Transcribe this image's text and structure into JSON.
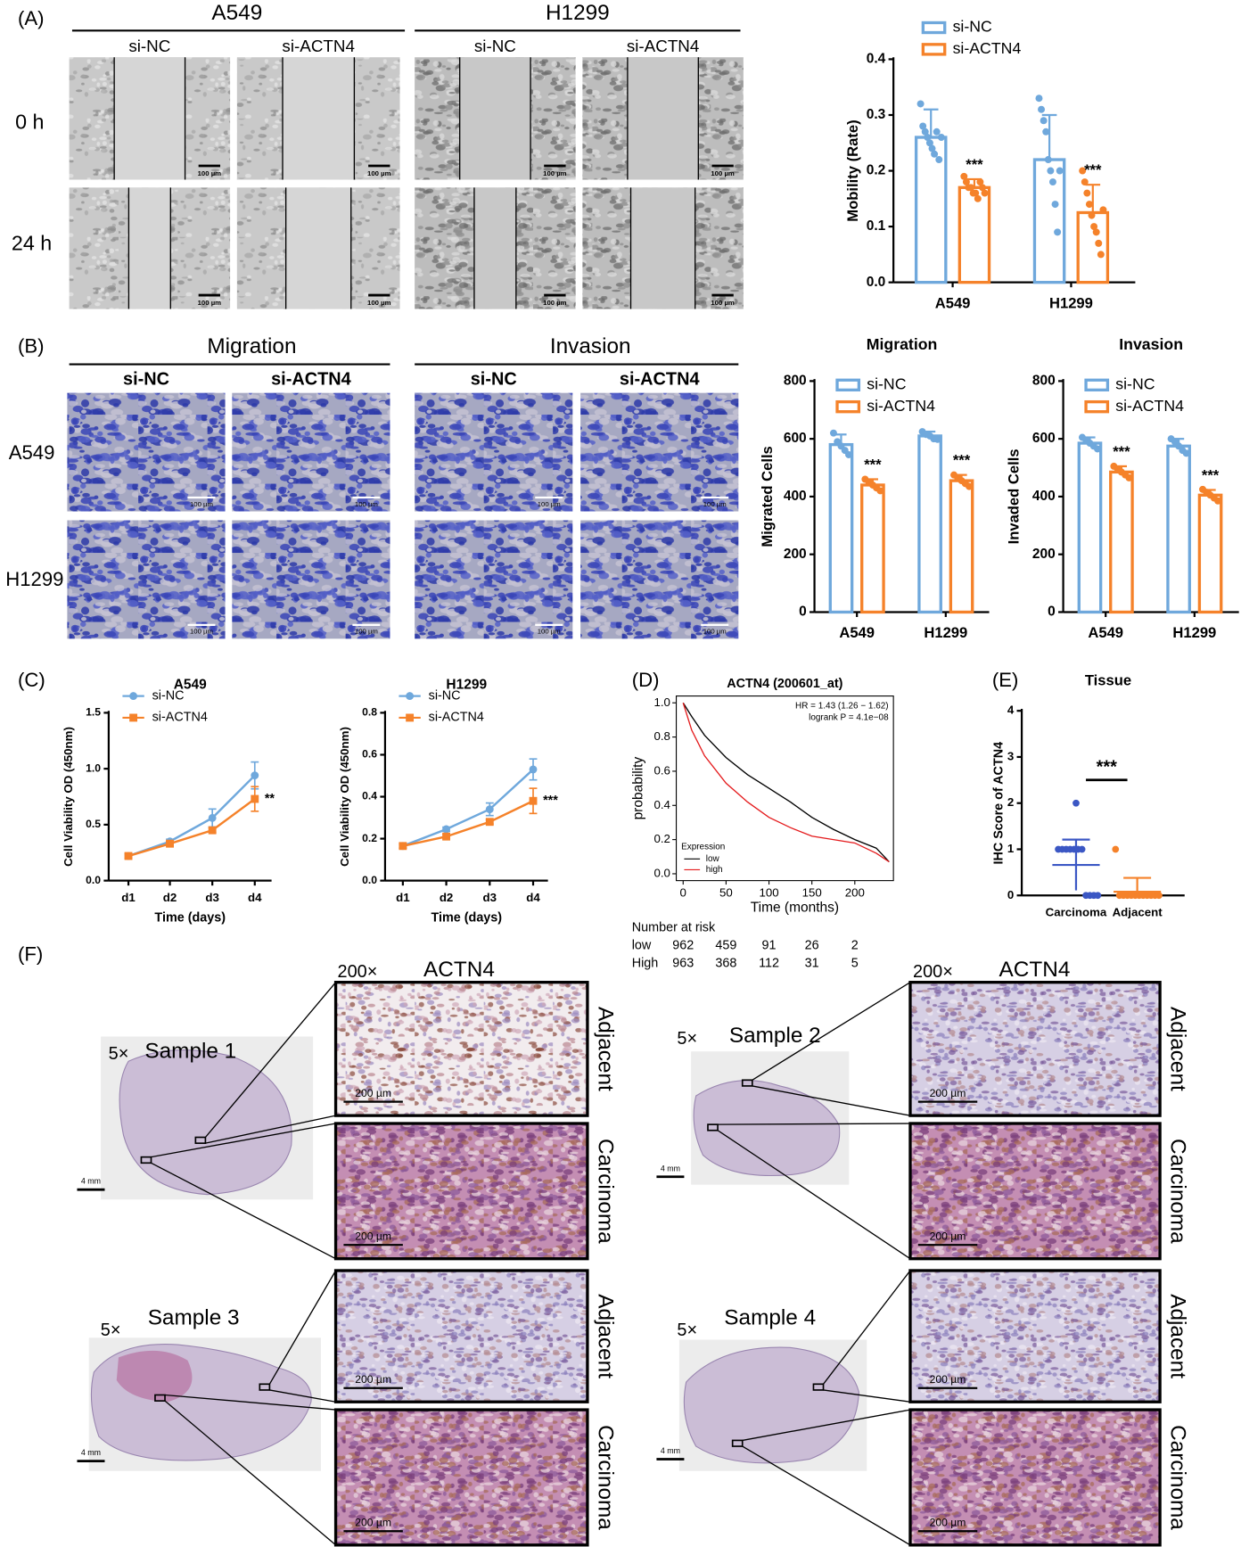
{
  "panel_labels": [
    "(A)",
    "(B)",
    "(C)",
    "(D)",
    "(E)",
    "(F)"
  ],
  "a_images": {
    "cell_lines": [
      "A549",
      "H1299"
    ],
    "groups": [
      "si-NC",
      "si-ACTN4"
    ],
    "times": [
      "0 h",
      "24 h"
    ],
    "scale": "100 µm"
  },
  "b_images": {
    "assays": [
      "Migration",
      "Invasion"
    ],
    "groups": [
      "si-NC",
      "si-ACTN4"
    ],
    "cell_lines": [
      "A549",
      "H1299"
    ],
    "scale": "100 µm"
  },
  "f_images": {
    "low_mag": "5×",
    "high_mag": "200×",
    "stain": "ACTN4",
    "samples": [
      "Sample 1",
      "Sample 2",
      "Sample 3",
      "Sample 4"
    ],
    "tissues": [
      "Adjacent",
      "Carcinoma"
    ],
    "scale_low": "4 mm",
    "scale_high": "200 µm"
  },
  "chart_data": [
    {
      "type": "bar",
      "ylabel": "Mobility (Rate)",
      "categories": [
        "A549",
        "H1299"
      ],
      "ylim": [
        0,
        0.4
      ],
      "yticks": [
        {
          "value": 0,
          "label": "0.0"
        },
        0.1,
        0.2,
        0.3,
        0.4
      ],
      "legend": true,
      "annotations": [
        "***",
        "***"
      ],
      "series": [
        {
          "name": "si-NC",
          "color": "#6fa8dc",
          "values": [
            0.26,
            0.22
          ],
          "errors": [
            0.05,
            0.08
          ],
          "points": [
            [
              0.32,
              0.28,
              0.27,
              0.26,
              0.25,
              0.24,
              0.23,
              0.27,
              0.22,
              0.26
            ],
            [
              0.33,
              0.31,
              0.29,
              0.27,
              0.22,
              0.2,
              0.18,
              0.14,
              0.09,
              0.2
            ]
          ]
        },
        {
          "name": "si-ACTN4",
          "color": "#f5822a",
          "values": [
            0.17,
            0.125
          ],
          "errors": [
            0.015,
            0.05
          ],
          "points": [
            [
              0.19,
              0.18,
              0.17,
              0.17,
              0.16,
              0.16,
              0.15,
              0.18,
              0.17,
              0.16
            ],
            [
              0.2,
              0.18,
              0.16,
              0.14,
              0.12,
              0.1,
              0.09,
              0.07,
              0.05,
              0.13
            ]
          ]
        }
      ]
    },
    {
      "type": "bar",
      "title": "Migration",
      "ylabel": "Migrated Cells",
      "categories": [
        "A549",
        "H1299"
      ],
      "ylim": [
        0,
        800
      ],
      "yticks": [
        0,
        200,
        400,
        600,
        800
      ],
      "legend": true,
      "annotations": [
        "***",
        "***"
      ],
      "series": [
        {
          "name": "si-NC",
          "color": "#6fa8dc",
          "values": [
            580,
            610
          ],
          "errors": [
            35,
            15
          ],
          "points": [
            [
              620,
              590,
              575,
              560,
              545
            ],
            [
              625,
              615,
              610,
              600,
              598
            ]
          ]
        },
        {
          "name": "si-ACTN4",
          "color": "#f5822a",
          "values": [
            440,
            455
          ],
          "errors": [
            20,
            20
          ],
          "points": [
            [
              460,
              450,
              440,
              430,
              420
            ],
            [
              475,
              465,
              455,
              445,
              435
            ]
          ]
        }
      ]
    },
    {
      "type": "bar",
      "title": "Invasion",
      "ylabel": "Invaded Cells",
      "categories": [
        "A549",
        "H1299"
      ],
      "ylim": [
        0,
        800
      ],
      "yticks": [
        0,
        200,
        400,
        600,
        800
      ],
      "legend": true,
      "annotations": [
        "***",
        "***"
      ],
      "series": [
        {
          "name": "si-NC",
          "color": "#6fa8dc",
          "values": [
            585,
            575
          ],
          "errors": [
            20,
            25
          ],
          "points": [
            [
              605,
              595,
              585,
              575,
              565
            ],
            [
              600,
              590,
              575,
              560,
              550
            ]
          ]
        },
        {
          "name": "si-ACTN4",
          "color": "#f5822a",
          "values": [
            485,
            405
          ],
          "errors": [
            20,
            18
          ],
          "points": [
            [
              505,
              495,
              485,
              475,
              465
            ],
            [
              425,
              415,
              405,
              395,
              385
            ]
          ]
        }
      ]
    },
    {
      "type": "line",
      "title": "A549",
      "xlabel": "Time (days)",
      "ylabel": "Cell Viability OD (450nm)",
      "categories": [
        "d1",
        "d2",
        "d3",
        "d4"
      ],
      "ylim": [
        0,
        1.5
      ],
      "yticks": [
        {
          "value": 0,
          "label": "0.0"
        },
        0.5,
        {
          "value": 1,
          "label": "1.0"
        },
        1.5
      ],
      "legend": true,
      "annotation": "**",
      "series": [
        {
          "name": "si-NC",
          "color": "#6fa8dc",
          "marker": "circle",
          "values": [
            0.22,
            0.35,
            0.56,
            0.94
          ],
          "errors": [
            0.02,
            0.02,
            0.08,
            0.12
          ]
        },
        {
          "name": "si-ACTN4",
          "color": "#f5822a",
          "marker": "square",
          "values": [
            0.22,
            0.33,
            0.45,
            0.73
          ],
          "errors": [
            0.02,
            0.02,
            0.02,
            0.11
          ]
        }
      ]
    },
    {
      "type": "line",
      "title": "H1299",
      "xlabel": "Time (days)",
      "ylabel": "Cell Viability OD (450nm)",
      "categories": [
        "d1",
        "d2",
        "d3",
        "d4"
      ],
      "ylim": [
        0,
        0.8
      ],
      "yticks": [
        {
          "value": 0,
          "label": "0.0"
        },
        0.2,
        0.4,
        0.6,
        0.8
      ],
      "legend": true,
      "annotation": "***",
      "series": [
        {
          "name": "si-NC",
          "color": "#6fa8dc",
          "marker": "circle",
          "values": [
            0.165,
            0.245,
            0.34,
            0.53
          ],
          "errors": [
            0.01,
            0.01,
            0.03,
            0.05
          ]
        },
        {
          "name": "si-ACTN4",
          "color": "#f5822a",
          "marker": "square",
          "values": [
            0.165,
            0.21,
            0.28,
            0.38
          ],
          "errors": [
            0.01,
            0.01,
            0.01,
            0.06
          ]
        }
      ]
    },
    {
      "type": "km",
      "title": "ACTN4 (200601_at)",
      "xlabel": "Time (months)",
      "ylabel": "probability",
      "xlim": [
        -8,
        245
      ],
      "xticks": [
        0,
        50,
        100,
        150,
        200
      ],
      "ylim": [
        -0.04,
        1.04
      ],
      "yticks": [
        {
          "value": 0,
          "label": "0.0"
        },
        0.2,
        0.4,
        0.6,
        0.8,
        {
          "value": 1,
          "label": "1.0"
        }
      ],
      "hr": "HR = 1.43 (1.26 − 1.62)",
      "logrank": "logrank P = 4.1e−08",
      "legend_title": "Expression",
      "series": [
        {
          "name": "low",
          "color": "#000000",
          "x": [
            0,
            10,
            25,
            50,
            75,
            100,
            125,
            150,
            175,
            200,
            225,
            240
          ],
          "values": [
            1,
            0.92,
            0.81,
            0.68,
            0.58,
            0.5,
            0.42,
            0.33,
            0.26,
            0.2,
            0.15,
            0.07
          ]
        },
        {
          "name": "high",
          "color": "#e41a1c",
          "x": [
            0,
            10,
            25,
            50,
            75,
            100,
            125,
            150,
            175,
            200,
            225,
            240
          ],
          "values": [
            1,
            0.84,
            0.69,
            0.53,
            0.42,
            0.33,
            0.27,
            0.22,
            0.2,
            0.18,
            0.12,
            0.07
          ]
        }
      ],
      "risk_table": {
        "title": "Number at risk",
        "rows": [
          {
            "label": "low",
            "values": [
              962,
              459,
              91,
              26,
              2
            ]
          },
          {
            "label": "High",
            "values": [
              963,
              368,
              112,
              31,
              5
            ]
          }
        ]
      }
    },
    {
      "type": "dot",
      "title": "Tissue",
      "ylabel": "IHC Score of ACTN4",
      "categories": [
        "Carcinoma",
        "Adjacent"
      ],
      "ylim": [
        0,
        4
      ],
      "yticks": [
        0,
        1,
        2,
        3,
        4
      ],
      "annotation": "***",
      "colors": [
        "#3b57c4",
        "#f5822a"
      ],
      "values": [
        0.66,
        0.08
      ],
      "errors": [
        0.55,
        0.3
      ],
      "points": [
        [
          2,
          1,
          1,
          1,
          1,
          1,
          1,
          1,
          0,
          0,
          0,
          0
        ],
        [
          1,
          0,
          0,
          0,
          0,
          0,
          0,
          0,
          0,
          0,
          0,
          0
        ]
      ]
    }
  ]
}
